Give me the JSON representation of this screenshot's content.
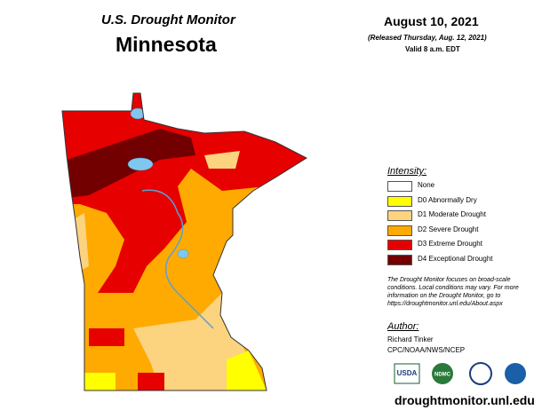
{
  "header": {
    "program": "U.S. Drought Monitor",
    "state": "Minnesota",
    "date": "August 10, 2021",
    "released": "(Released Thursday, Aug. 12, 2021)",
    "valid": "Valid 8 a.m. EDT"
  },
  "legend": {
    "title": "Intensity:",
    "items": [
      {
        "label": "None",
        "color": "#ffffff"
      },
      {
        "label": "D0 Abnormally Dry",
        "color": "#ffff00"
      },
      {
        "label": "D1 Moderate Drought",
        "color": "#fcd37f"
      },
      {
        "label": "D2 Severe Drought",
        "color": "#ffaa00"
      },
      {
        "label": "D3 Extreme Drought",
        "color": "#e60000"
      },
      {
        "label": "D4 Exceptional Drought",
        "color": "#730000"
      }
    ]
  },
  "note": "The Drought Monitor focuses on broad-scale conditions. Local conditions may vary. For more information on the Drought Monitor, go to https://droughtmonitor.unl.edu/About.aspx",
  "author": {
    "title": "Author:",
    "name": "Richard Tinker",
    "agency": "CPC/NOAA/NWS/NCEP"
  },
  "logos": [
    "USDA",
    "NDMC"
  ],
  "url": "droughtmonitor.unl.edu"
}
